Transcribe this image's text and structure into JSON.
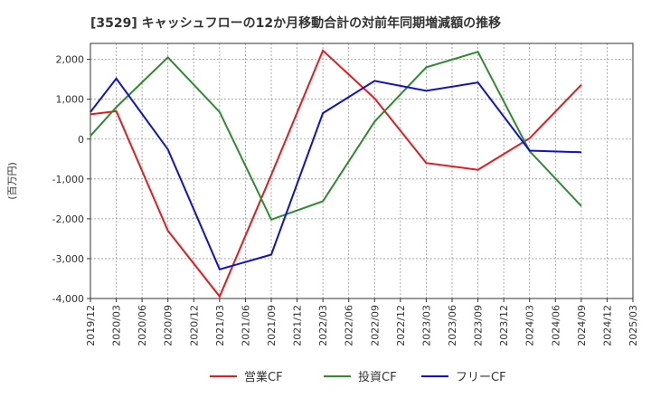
{
  "chart_data": {
    "type": "line",
    "title": "[3529]  キャッシュフローの12か月移動合計の対前年同期増減額の推移",
    "ylabel": "(百万円)",
    "xlabel": "",
    "ylim": [
      -4000,
      2400
    ],
    "yticks": [
      2000,
      1000,
      0,
      -1000,
      -2000,
      -3000,
      -4000
    ],
    "ytick_labels": [
      "2,000",
      "1,000",
      "0",
      "-1,000",
      "-2,000",
      "-3,000",
      "-4,000"
    ],
    "categories": [
      "2019/12",
      "2020/03",
      "2020/06",
      "2020/09",
      "2020/12",
      "2021/03",
      "2021/06",
      "2021/09",
      "2021/12",
      "2022/03",
      "2022/06",
      "2022/09",
      "2022/12",
      "2023/03",
      "2023/06",
      "2023/09",
      "2023/12",
      "2024/03",
      "2024/06",
      "2024/09",
      "2024/12",
      "2025/03"
    ],
    "grid": true,
    "legend_position": "bottom",
    "series": [
      {
        "name": "営業CF",
        "color": "#e41a1c",
        "points": [
          [
            0,
            620
          ],
          [
            1,
            700
          ],
          [
            3,
            -2300
          ],
          [
            5,
            -3950
          ],
          [
            7,
            -900
          ],
          [
            9,
            2220
          ],
          [
            11,
            1020
          ],
          [
            13,
            -600
          ],
          [
            15,
            -770
          ],
          [
            17,
            20
          ],
          [
            19,
            1360
          ]
        ]
      },
      {
        "name": "投資CF",
        "color": "#2e8b2e",
        "points": [
          [
            0,
            80
          ],
          [
            1,
            800
          ],
          [
            3,
            2050
          ],
          [
            5,
            680
          ],
          [
            7,
            -2020
          ],
          [
            9,
            -1560
          ],
          [
            11,
            440
          ],
          [
            13,
            1800
          ],
          [
            15,
            2190
          ],
          [
            17,
            -300
          ],
          [
            19,
            -1680
          ]
        ]
      },
      {
        "name": "フリーCF",
        "color": "#1010d0",
        "points": [
          [
            0,
            680
          ],
          [
            1,
            1520
          ],
          [
            3,
            -260
          ],
          [
            5,
            -3270
          ],
          [
            7,
            -2900
          ],
          [
            9,
            650
          ],
          [
            11,
            1460
          ],
          [
            13,
            1210
          ],
          [
            15,
            1420
          ],
          [
            17,
            -290
          ],
          [
            19,
            -330
          ]
        ]
      }
    ]
  }
}
